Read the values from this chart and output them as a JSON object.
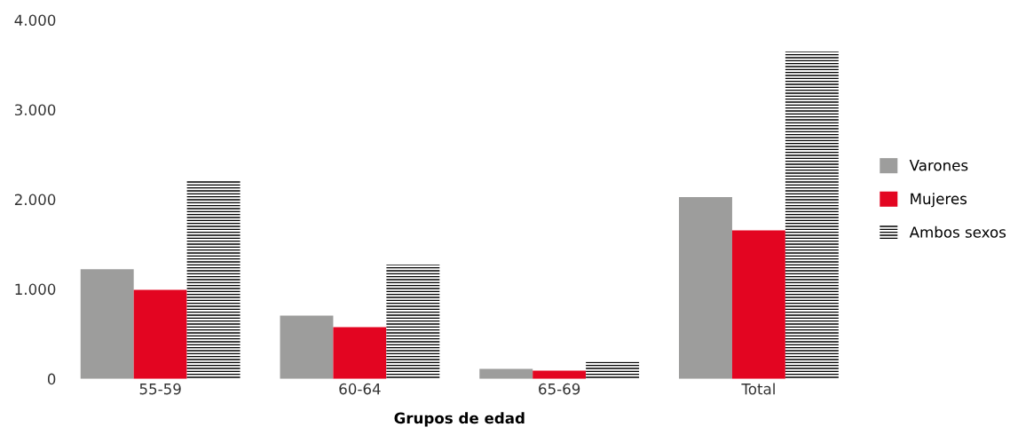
{
  "chart_data": {
    "type": "bar",
    "xlabel": "Grupos de edad",
    "categories": [
      "55-59",
      "60-64",
      "65-69",
      "Total"
    ],
    "series": [
      {
        "name": "Varones",
        "color": "#9d9d9c",
        "values": [
          1220,
          705,
          110,
          2025
        ]
      },
      {
        "name": "Mujeres",
        "color": "#e30521",
        "values": [
          990,
          575,
          90,
          1655
        ]
      },
      {
        "name": "Ambos sexos",
        "color": "#000000",
        "values": [
          2210,
          1270,
          190,
          3645
        ]
      }
    ],
    "ylim": [
      0,
      4000
    ],
    "yticks": [
      {
        "value": 0,
        "label": "0"
      },
      {
        "value": 1000,
        "label": "1.000"
      },
      {
        "value": 2000,
        "label": "2.000"
      },
      {
        "value": 3000,
        "label": "3.000"
      },
      {
        "value": 4000,
        "label": "4.000"
      }
    ],
    "grid": false,
    "legend": "right"
  }
}
